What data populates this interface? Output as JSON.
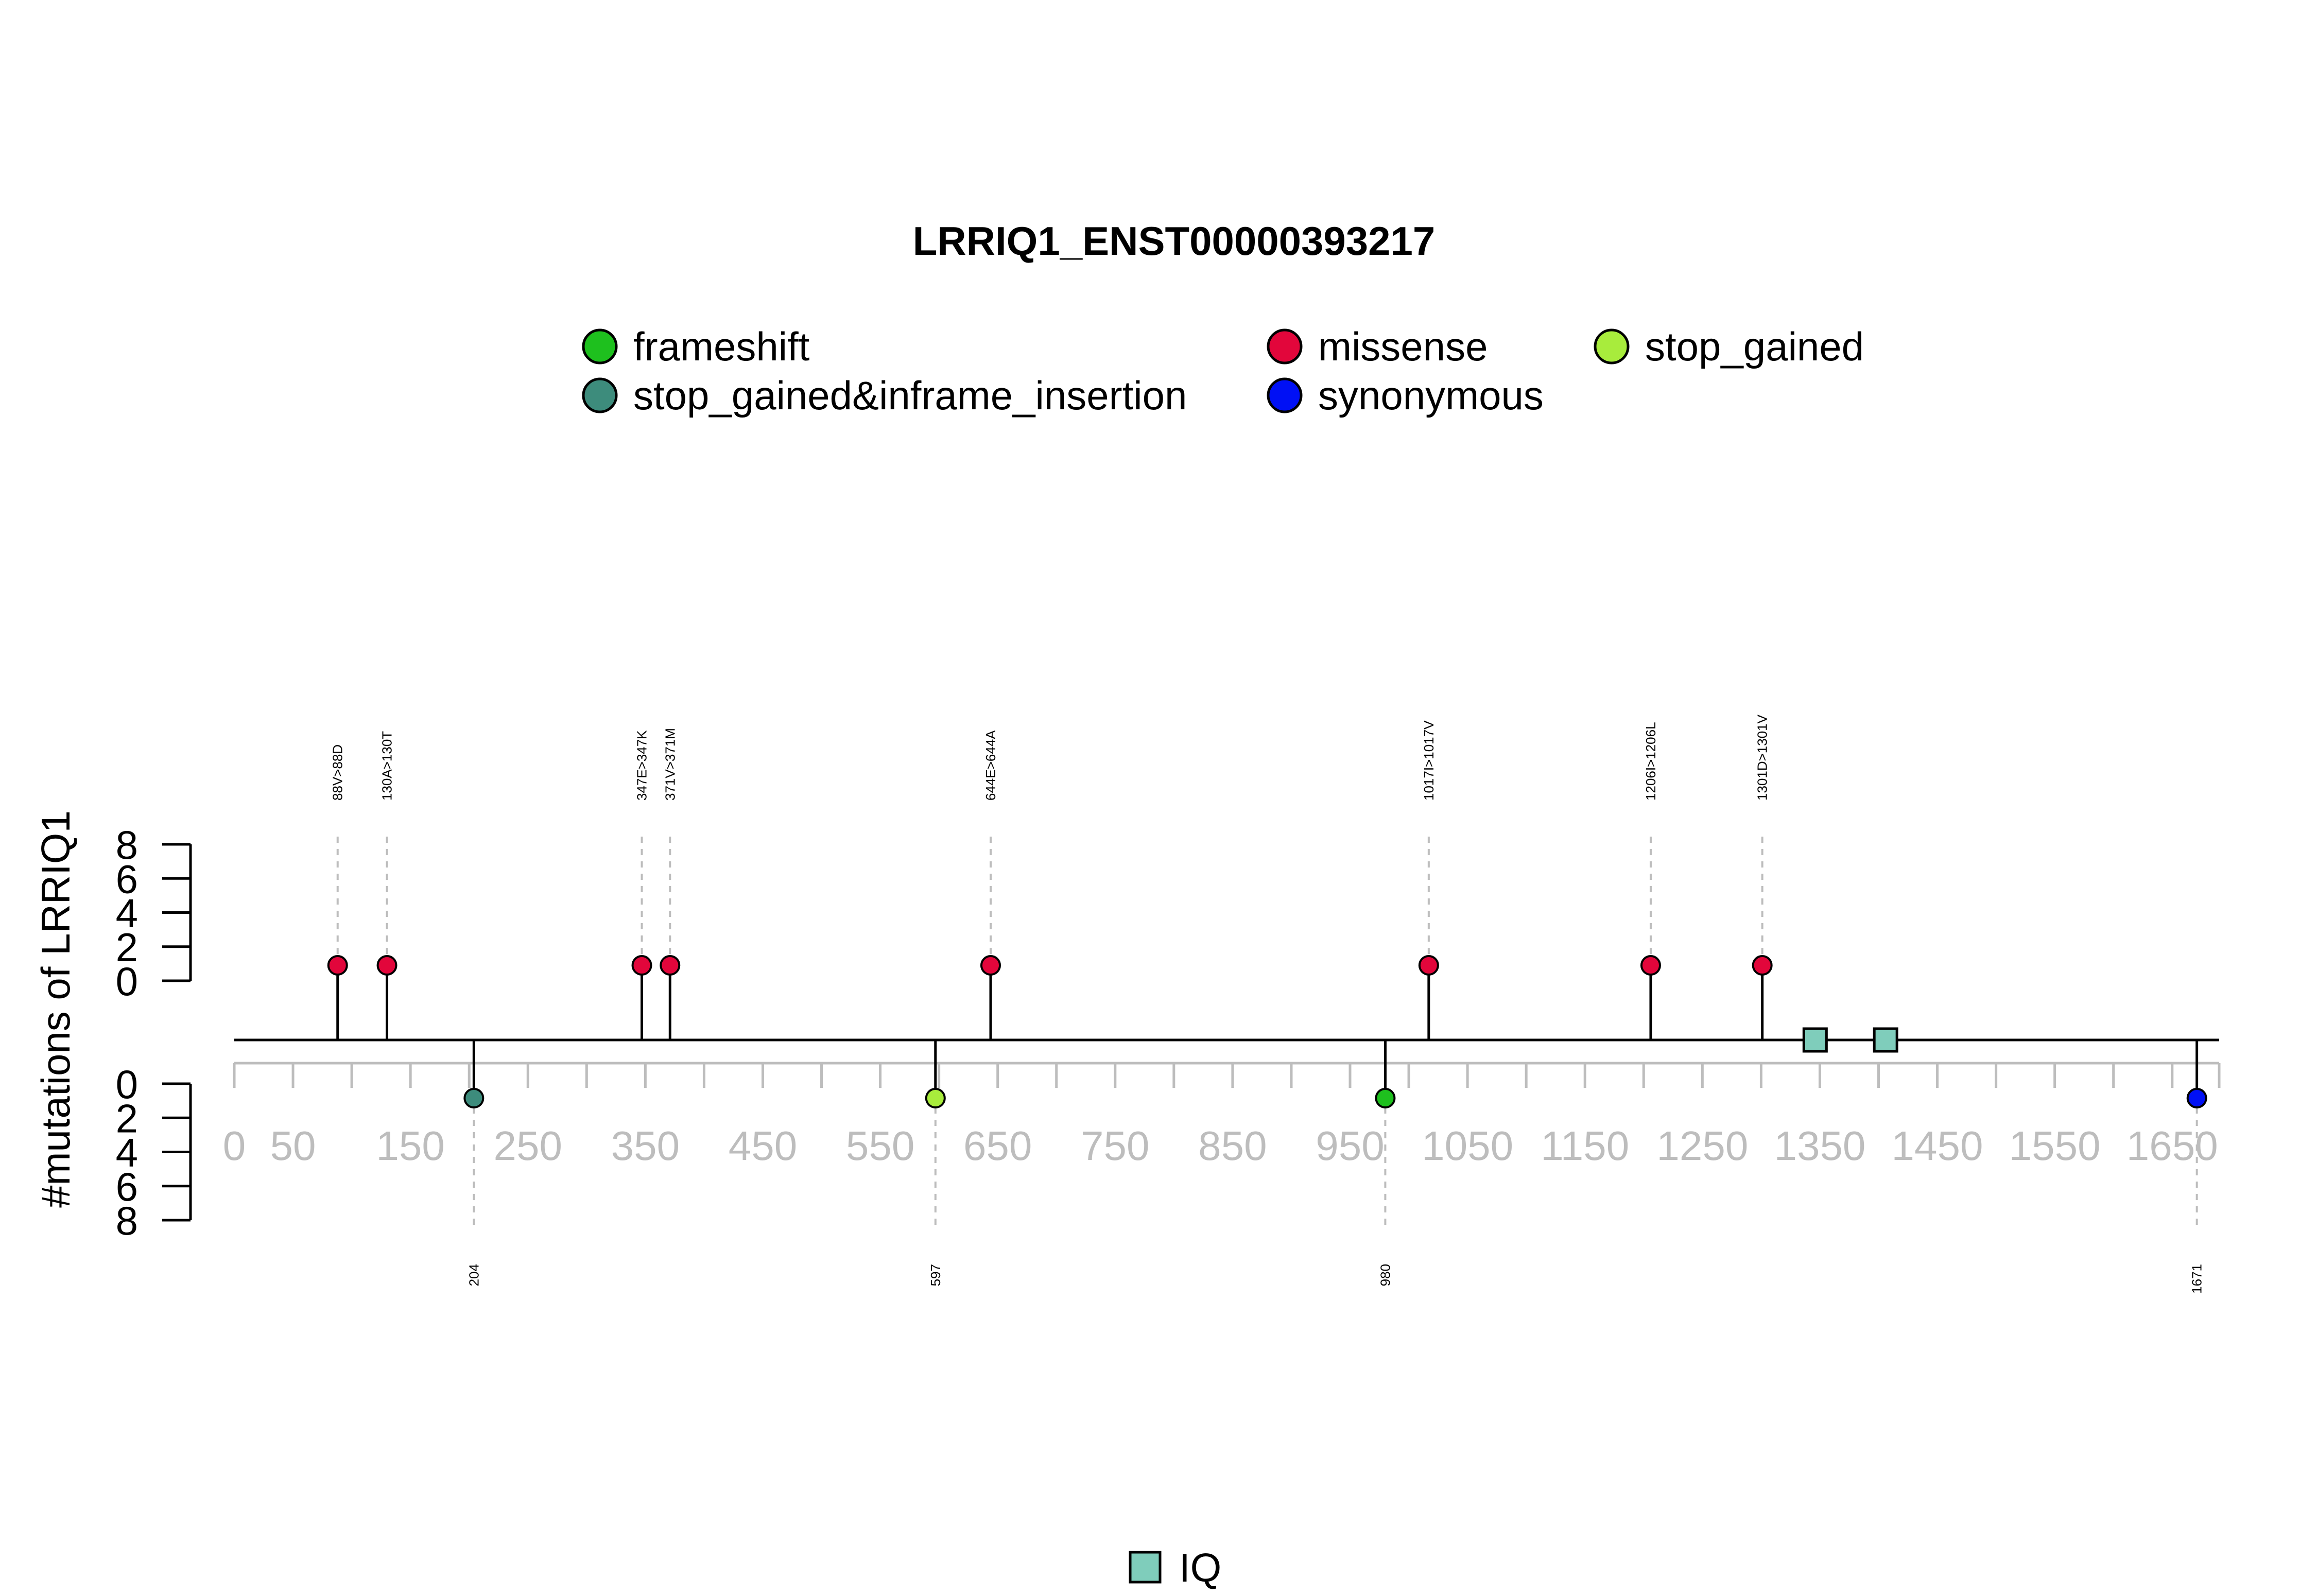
{
  "chart_data": {
    "type": "lollipop",
    "title": "LRRIQ1_ENST00000393217",
    "ylabel": "#mutations of LRRIQ1",
    "xlim": [
      0,
      1690
    ],
    "x_ticks": [
      0,
      50,
      100,
      150,
      200,
      250,
      300,
      350,
      400,
      450,
      500,
      550,
      600,
      650,
      700,
      750,
      800,
      850,
      900,
      950,
      1000,
      1050,
      1100,
      1150,
      1200,
      1250,
      1300,
      1350,
      1400,
      1450,
      1500,
      1550,
      1600,
      1650,
      1690
    ],
    "x_tick_labels": [
      "0",
      "50",
      "150",
      "250",
      "350",
      "450",
      "550",
      "650",
      "750",
      "850",
      "950",
      "1050",
      "1150",
      "1250",
      "1350",
      "1450",
      "1550",
      "1650"
    ],
    "y_ticks_top": [
      "8",
      "6",
      "4",
      "2",
      "0"
    ],
    "y_ticks_bottom": [
      "0",
      "2",
      "4",
      "6",
      "8"
    ],
    "ylim": [
      0,
      8
    ],
    "legend": [
      {
        "label": "frameshift",
        "color": "#1ec01e"
      },
      {
        "label": "missense",
        "color": "#e2063b"
      },
      {
        "label": "stop_gained",
        "color": "#a8ec3c"
      },
      {
        "label": "stop_gained&inframe_insertion",
        "color": "#3d8c7c"
      },
      {
        "label": "synonymous",
        "color": "#0010f5"
      }
    ],
    "mutations_top": [
      {
        "pos": 88,
        "count": 1,
        "type": "missense",
        "label": "88V>88D"
      },
      {
        "pos": 130,
        "count": 1,
        "type": "missense",
        "label": "130A>130T"
      },
      {
        "pos": 347,
        "count": 1,
        "type": "missense",
        "label": "347E>347K"
      },
      {
        "pos": 371,
        "count": 1,
        "type": "missense",
        "label": "371V>371M"
      },
      {
        "pos": 644,
        "count": 1,
        "type": "missense",
        "label": "644E>644A"
      },
      {
        "pos": 1017,
        "count": 1,
        "type": "missense",
        "label": "1017I>1017V"
      },
      {
        "pos": 1206,
        "count": 1,
        "type": "missense",
        "label": "1206I>1206L"
      },
      {
        "pos": 1301,
        "count": 1,
        "type": "missense",
        "label": "1301D>1301V"
      }
    ],
    "mutations_bottom": [
      {
        "pos": 204,
        "count": 1,
        "type": "stop_gained&inframe_insertion",
        "label": "204"
      },
      {
        "pos": 597,
        "count": 1,
        "type": "stop_gained",
        "label": "597"
      },
      {
        "pos": 980,
        "count": 1,
        "type": "frameshift",
        "label": "980"
      },
      {
        "pos": 1671,
        "count": 1,
        "type": "synonymous",
        "label": "1671"
      }
    ],
    "domains": [
      {
        "name": "IQ",
        "positions": [
          1346,
          1406
        ],
        "color": "#7fcdbb"
      }
    ],
    "domain_legend": {
      "label": "IQ",
      "color": "#7fcdbb"
    }
  }
}
